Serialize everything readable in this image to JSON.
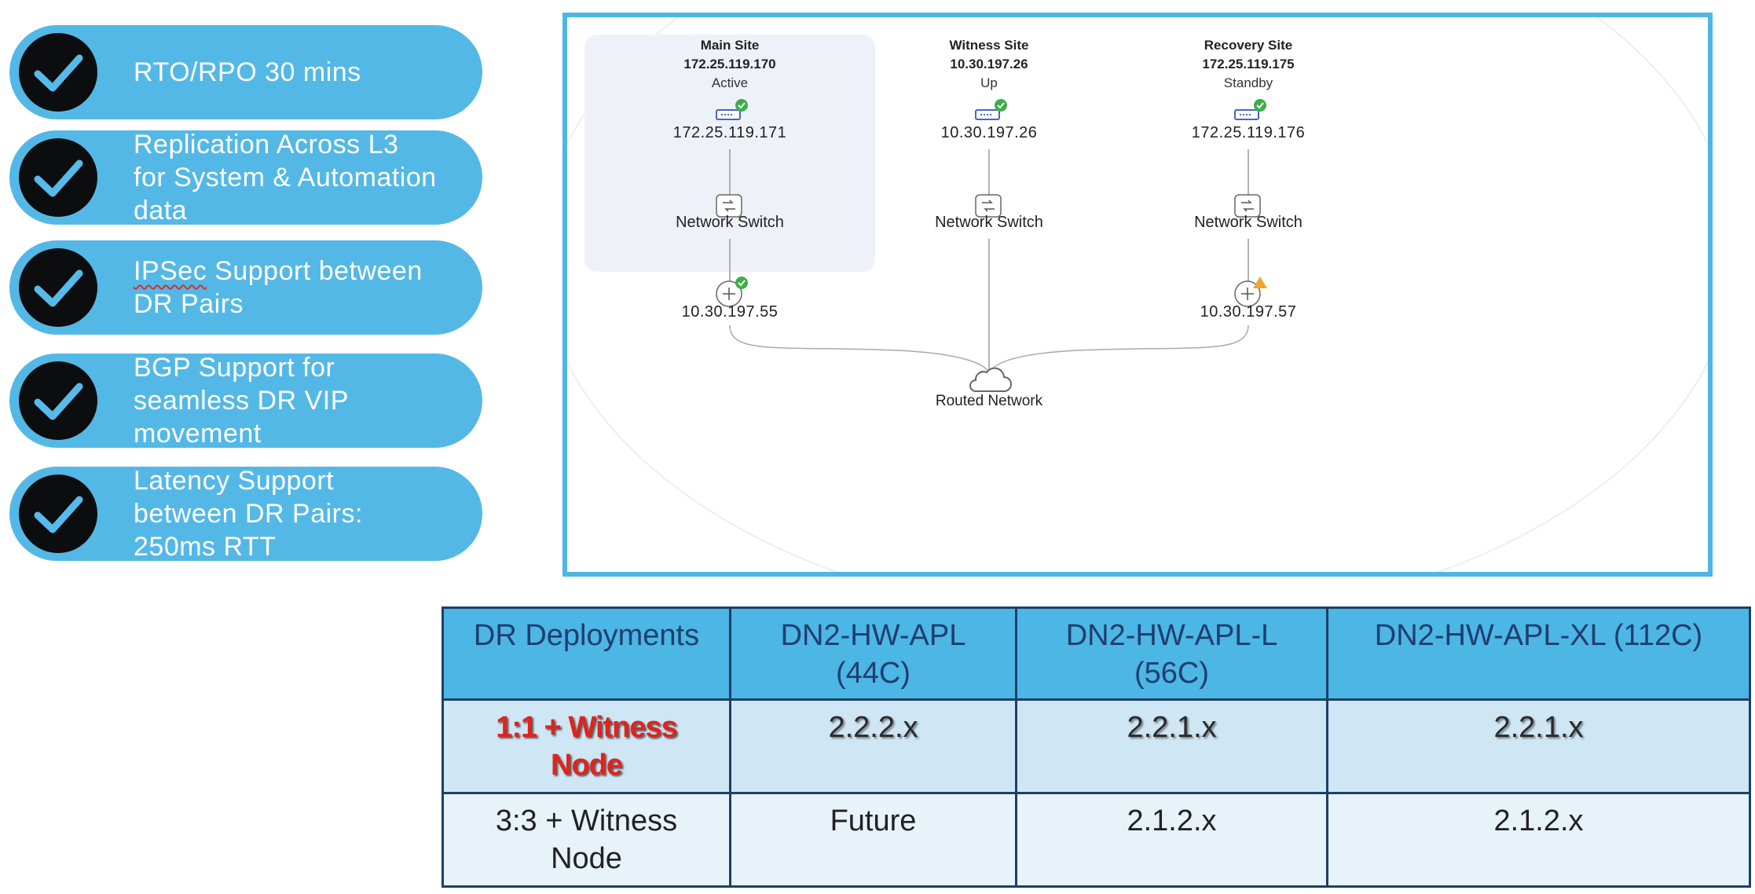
{
  "features": [
    {
      "lines": [
        "RTO/RPO 30 mins"
      ]
    },
    {
      "lines": [
        "Replication Across L3",
        "for System & Automation",
        "data"
      ]
    },
    {
      "lines": [
        "IPSec",
        " Support between",
        "DR Pairs"
      ]
    },
    {
      "lines": [
        "BGP Support for",
        "seamless DR VIP",
        "movement"
      ]
    },
    {
      "lines": [
        "Latency Support",
        "between DR Pairs:",
        "250ms RTT"
      ]
    }
  ],
  "topology": {
    "sites": [
      {
        "name": "Main Site",
        "ip": "172.25.119.170",
        "status": "Active",
        "server_ip": "172.25.119.171",
        "switch_label": "Network Switch",
        "router_ip": "10.30.197.55",
        "server_status": "ok",
        "router_status": "ok"
      },
      {
        "name": "Witness Site",
        "ip": "10.30.197.26",
        "status": "Up",
        "server_ip": "10.30.197.26",
        "switch_label": "Network Switch",
        "server_status": "ok"
      },
      {
        "name": "Recovery Site",
        "ip": "172.25.119.175",
        "status": "Standby",
        "server_ip": "172.25.119.176",
        "switch_label": "Network Switch",
        "router_ip": "10.30.197.57",
        "server_status": "ok",
        "router_status": "warning"
      }
    ],
    "cloud_label": "Routed Network",
    "colors": {
      "ok": "#3fae49",
      "warning": "#f0a32f",
      "panel_border": "#4db7e4",
      "active_bg": "#eef2f8"
    }
  },
  "table": {
    "headers": [
      "DR Deployments",
      "DN2-HW-APL\n(44C)",
      "DN2-HW-APL-L\n(56C)",
      "DN2-HW-APL-XL (112C)"
    ],
    "rows": [
      [
        "1:1 + Witness\nNode",
        "2.2.2.x",
        "2.2.1.x",
        "2.2.1.x"
      ],
      [
        "3:3 + Witness\nNode",
        "Future",
        "2.1.2.x",
        "2.1.2.x"
      ]
    ]
  }
}
